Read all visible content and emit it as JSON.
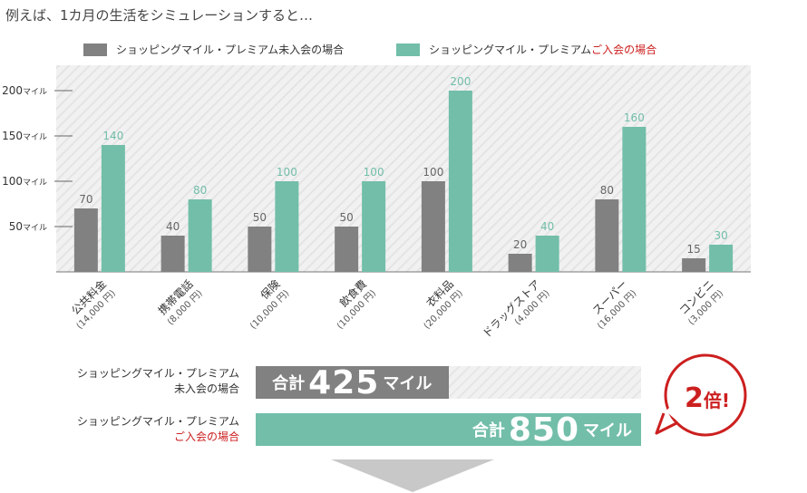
{
  "intro_text": "例えば、1カ月の生活をシミュレーションすると…",
  "legend": {
    "non_member": "ショッピングマイル・プレミアム未入会の場合",
    "member_prefix": "ショッピングマイル・プレミアム",
    "member_suffix": "ご入会の場合"
  },
  "colors": {
    "non_member": "#818181",
    "member": "#72bea9",
    "accent": "#cc1f1f"
  },
  "chart_data": {
    "type": "bar",
    "y_unit": "マイル",
    "yticks": [
      50,
      100,
      150,
      200
    ],
    "ytick_labels": [
      "50",
      "100",
      "150",
      "200"
    ],
    "ylim": [
      0,
      230
    ],
    "grid": false,
    "legend_position": "top",
    "categories": [
      {
        "name": "公共料金",
        "amount": "(14,000 円)"
      },
      {
        "name": "携帯電話",
        "amount": "(8,000 円)"
      },
      {
        "name": "保険",
        "amount": "(10,000 円)"
      },
      {
        "name": "飲食費",
        "amount": "(10,000 円)"
      },
      {
        "name": "衣料品",
        "amount": "(20,000 円)"
      },
      {
        "name": "ドラッグストア",
        "amount": "(4,000 円)"
      },
      {
        "name": "スーパー",
        "amount": "(16,000 円)"
      },
      {
        "name": "コンビニ",
        "amount": "(3,000 円)"
      }
    ],
    "series": [
      {
        "name": "ショッピングマイル・プレミアム未入会の場合",
        "color": "#818181",
        "values": [
          70,
          40,
          50,
          50,
          100,
          20,
          80,
          15
        ]
      },
      {
        "name": "ショッピングマイル・プレミアムご入会の場合",
        "color": "#72bea9",
        "values": [
          140,
          80,
          100,
          100,
          200,
          40,
          160,
          30
        ]
      }
    ]
  },
  "totals": {
    "non_member": {
      "label_line1": "ショッピングマイル・プレミアム",
      "label_line2": "未入会の場合",
      "prefix": "合計",
      "value": "425",
      "unit": "マイル",
      "amount": 425
    },
    "member": {
      "label_line1": "ショッピングマイル・プレミアム",
      "label_line2": "ご入会の場合",
      "prefix": "合計",
      "value": "850",
      "unit": "マイル",
      "amount": 850
    },
    "max": 850
  },
  "badge": {
    "number": "2",
    "word": "倍",
    "mark": "!"
  }
}
